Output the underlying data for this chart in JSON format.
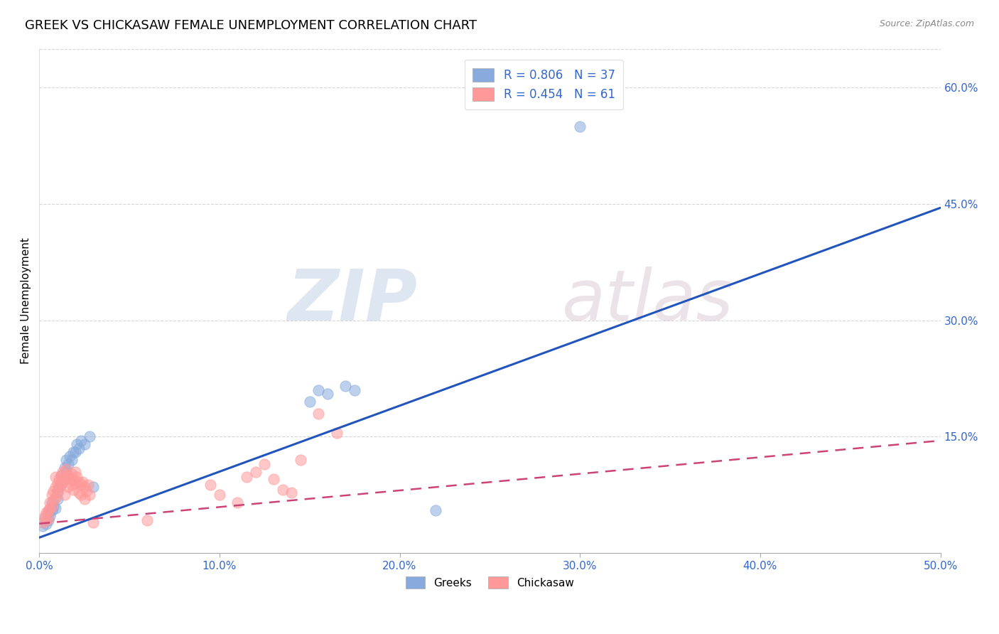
{
  "title": "GREEK VS CHICKASAW FEMALE UNEMPLOYMENT CORRELATION CHART",
  "source": "Source: ZipAtlas.com",
  "ylabel": "Female Unemployment",
  "xlim": [
    0,
    0.5
  ],
  "ylim": [
    0,
    0.65
  ],
  "xticks": [
    0.0,
    0.1,
    0.2,
    0.3,
    0.4,
    0.5
  ],
  "xtick_labels": [
    "0.0%",
    "10.0%",
    "20.0%",
    "30.0%",
    "40.0%",
    "50.0%"
  ],
  "yticks_right": [
    0.15,
    0.3,
    0.45,
    0.6
  ],
  "ytick_labels_right": [
    "15.0%",
    "30.0%",
    "45.0%",
    "60.0%"
  ],
  "greek_color": "#88AADD",
  "chickasaw_color": "#FF9999",
  "greek_R": 0.806,
  "greek_N": 37,
  "chickasaw_R": 0.454,
  "chickasaw_N": 61,
  "legend_text_color": "#3366CC",
  "axis_color": "#3366CC",
  "watermark_zip": "ZIP",
  "watermark_atlas": "atlas",
  "background_color": "#FFFFFF",
  "grid_color": "#CCCCCC",
  "greek_scatter": [
    [
      0.002,
      0.035
    ],
    [
      0.003,
      0.045
    ],
    [
      0.004,
      0.038
    ],
    [
      0.005,
      0.042
    ],
    [
      0.005,
      0.052
    ],
    [
      0.006,
      0.048
    ],
    [
      0.007,
      0.055
    ],
    [
      0.007,
      0.065
    ],
    [
      0.008,
      0.06
    ],
    [
      0.009,
      0.058
    ],
    [
      0.01,
      0.07
    ],
    [
      0.01,
      0.08
    ],
    [
      0.011,
      0.085
    ],
    [
      0.012,
      0.09
    ],
    [
      0.012,
      0.1
    ],
    [
      0.013,
      0.095
    ],
    [
      0.014,
      0.11
    ],
    [
      0.015,
      0.105
    ],
    [
      0.015,
      0.12
    ],
    [
      0.016,
      0.115
    ],
    [
      0.017,
      0.125
    ],
    [
      0.018,
      0.12
    ],
    [
      0.019,
      0.13
    ],
    [
      0.02,
      0.13
    ],
    [
      0.021,
      0.14
    ],
    [
      0.022,
      0.135
    ],
    [
      0.023,
      0.145
    ],
    [
      0.025,
      0.14
    ],
    [
      0.028,
      0.15
    ],
    [
      0.15,
      0.195
    ],
    [
      0.155,
      0.21
    ],
    [
      0.16,
      0.205
    ],
    [
      0.17,
      0.215
    ],
    [
      0.175,
      0.21
    ],
    [
      0.22,
      0.055
    ],
    [
      0.3,
      0.55
    ],
    [
      0.03,
      0.085
    ]
  ],
  "chickasaw_scatter": [
    [
      0.002,
      0.04
    ],
    [
      0.003,
      0.048
    ],
    [
      0.004,
      0.042
    ],
    [
      0.004,
      0.052
    ],
    [
      0.005,
      0.045
    ],
    [
      0.005,
      0.055
    ],
    [
      0.006,
      0.058
    ],
    [
      0.006,
      0.065
    ],
    [
      0.007,
      0.06
    ],
    [
      0.007,
      0.075
    ],
    [
      0.008,
      0.068
    ],
    [
      0.008,
      0.08
    ],
    [
      0.009,
      0.072
    ],
    [
      0.009,
      0.085
    ],
    [
      0.009,
      0.098
    ],
    [
      0.01,
      0.078
    ],
    [
      0.01,
      0.09
    ],
    [
      0.011,
      0.085
    ],
    [
      0.011,
      0.095
    ],
    [
      0.012,
      0.088
    ],
    [
      0.012,
      0.1
    ],
    [
      0.013,
      0.092
    ],
    [
      0.013,
      0.105
    ],
    [
      0.014,
      0.098
    ],
    [
      0.014,
      0.075
    ],
    [
      0.015,
      0.095
    ],
    [
      0.015,
      0.108
    ],
    [
      0.016,
      0.1
    ],
    [
      0.016,
      0.085
    ],
    [
      0.017,
      0.095
    ],
    [
      0.018,
      0.102
    ],
    [
      0.018,
      0.088
    ],
    [
      0.019,
      0.095
    ],
    [
      0.019,
      0.082
    ],
    [
      0.02,
      0.09
    ],
    [
      0.02,
      0.105
    ],
    [
      0.021,
      0.098
    ],
    [
      0.022,
      0.092
    ],
    [
      0.022,
      0.078
    ],
    [
      0.023,
      0.088
    ],
    [
      0.023,
      0.075
    ],
    [
      0.024,
      0.092
    ],
    [
      0.025,
      0.085
    ],
    [
      0.025,
      0.07
    ],
    [
      0.026,
      0.08
    ],
    [
      0.027,
      0.088
    ],
    [
      0.028,
      0.075
    ],
    [
      0.03,
      0.04
    ],
    [
      0.12,
      0.105
    ],
    [
      0.125,
      0.115
    ],
    [
      0.13,
      0.095
    ],
    [
      0.135,
      0.082
    ],
    [
      0.14,
      0.078
    ],
    [
      0.145,
      0.12
    ],
    [
      0.155,
      0.18
    ],
    [
      0.165,
      0.155
    ],
    [
      0.06,
      0.042
    ],
    [
      0.095,
      0.088
    ],
    [
      0.1,
      0.075
    ],
    [
      0.11,
      0.065
    ],
    [
      0.115,
      0.098
    ]
  ],
  "greek_line_x": [
    0.0,
    0.5
  ],
  "greek_line_y": [
    0.02,
    0.445
  ],
  "chickasaw_line_x": [
    0.0,
    0.5
  ],
  "chickasaw_line_y": [
    0.038,
    0.145
  ]
}
